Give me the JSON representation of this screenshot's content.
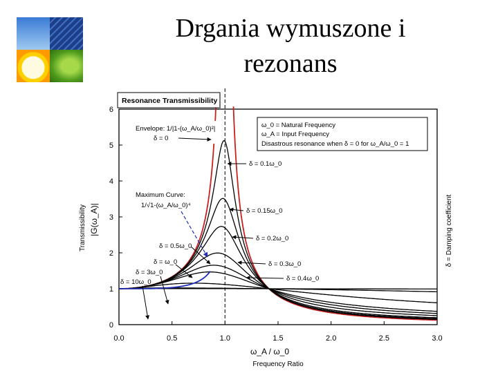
{
  "slide": {
    "title_line1": "Drgania wymuszone i",
    "title_line2": "rezonans"
  },
  "chart_data": {
    "type": "line",
    "title": "Resonance Transmissibility",
    "xlabel_symbol": "ω_A / ω_0",
    "xlabel": "Frequency Ratio",
    "ylabel": "Transmissibility",
    "ylabel_symbol": "|G(ω_A)|",
    "right_label": "δ = Damping coefficient",
    "xlim": [
      0,
      3
    ],
    "ylim": [
      0,
      6
    ],
    "x_ticks": [
      "0.0",
      "0.5",
      "1.0",
      "1.5",
      "2.0",
      "2.5",
      "3.0"
    ],
    "y_ticks": [
      "0",
      "1",
      "2",
      "3",
      "4",
      "5",
      "6"
    ],
    "legend": {
      "line1": "ω_0 = Natural Frequency",
      "line2": "ω_A = Input Frequency",
      "line3": "Disastrous resonance when δ = 0 for ω_A/ω_0 = 1"
    },
    "envelope_label": "Envelope: 1/|1-(ω_A/ω_0)²|",
    "envelope_delta": "δ = 0",
    "maxcurve_label": "Maximum Curve:",
    "maxcurve_formula": "1/√1-(ω_A/ω_0)⁴",
    "curve_labels": [
      "δ = 0.1ω_0",
      "δ = 0.15ω_0",
      "δ = 0.2ω_0",
      "δ = 0.3ω_0",
      "δ = 0.4ω_0",
      "δ = 0.5ω_0",
      "δ = ω_0",
      "δ = 3ω_0",
      "δ = 10ω_0"
    ],
    "series": [
      {
        "delta": 0.1,
        "peak": 5.0
      },
      {
        "delta": 0.15,
        "peak": 3.35
      },
      {
        "delta": 0.2,
        "peak": 2.55
      },
      {
        "delta": 0.3,
        "peak": 1.75
      },
      {
        "delta": 0.4,
        "peak": 1.36
      },
      {
        "delta": 0.5,
        "peak": 1.15
      },
      {
        "delta": 1.0
      },
      {
        "delta": 3.0
      },
      {
        "delta": 10.0
      }
    ],
    "colors": {
      "envelope": "#c8201e",
      "max_curve": "#1f2db5",
      "curves": "#000000",
      "resonance_line": "#333333"
    }
  }
}
